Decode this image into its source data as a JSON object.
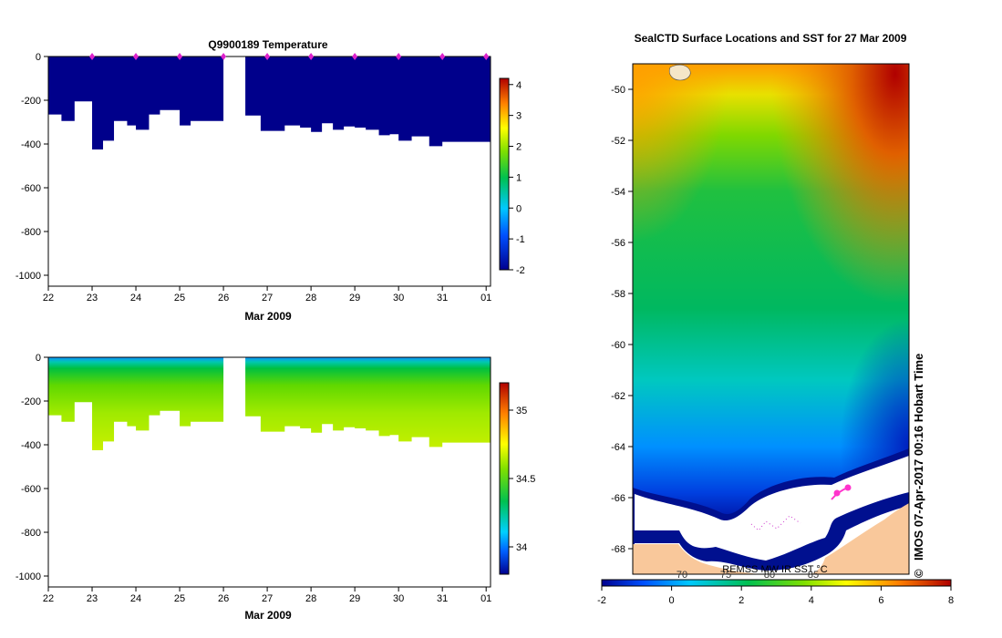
{
  "chart_data": [
    {
      "type": "heatmap",
      "title": "Q9900189  Temperature",
      "xlabel": "Mar 2009",
      "ylabel": "",
      "x_ticks": [
        "22",
        "23",
        "24",
        "25",
        "26",
        "27",
        "28",
        "29",
        "30",
        "31",
        "01"
      ],
      "y_ticks": [
        "0",
        "-200",
        "-400",
        "-600",
        "-800",
        "-1000"
      ],
      "ylim": [
        -1050,
        0
      ],
      "colorbar_ticks": [
        "-2",
        "-1",
        "0",
        "1",
        "2",
        "3",
        "4"
      ],
      "colorbar_range": [
        -2,
        4.2
      ],
      "gap_days": [
        26.0,
        26.5
      ],
      "profile_marks": [
        "23",
        "24",
        "25",
        "26",
        "27",
        "28",
        "29",
        "30",
        "31",
        "01"
      ],
      "profile_bottom_depths": [
        {
          "x": 22.0,
          "depth": -265
        },
        {
          "x": 22.3,
          "depth": -295
        },
        {
          "x": 22.6,
          "depth": -205
        },
        {
          "x": 23.0,
          "depth": -425
        },
        {
          "x": 23.25,
          "depth": -385
        },
        {
          "x": 23.5,
          "depth": -295
        },
        {
          "x": 23.8,
          "depth": -315
        },
        {
          "x": 24.0,
          "depth": -335
        },
        {
          "x": 24.3,
          "depth": -265
        },
        {
          "x": 24.55,
          "depth": -245
        },
        {
          "x": 25.0,
          "depth": -315
        },
        {
          "x": 25.25,
          "depth": -295
        },
        {
          "x": 26.5,
          "depth": -270
        },
        {
          "x": 26.85,
          "depth": -340
        },
        {
          "x": 27.4,
          "depth": -315
        },
        {
          "x": 27.75,
          "depth": -325
        },
        {
          "x": 28.0,
          "depth": -345
        },
        {
          "x": 28.25,
          "depth": -305
        },
        {
          "x": 28.5,
          "depth": -335
        },
        {
          "x": 28.75,
          "depth": -320
        },
        {
          "x": 29.0,
          "depth": -325
        },
        {
          "x": 29.25,
          "depth": -335
        },
        {
          "x": 29.55,
          "depth": -360
        },
        {
          "x": 29.8,
          "depth": -355
        },
        {
          "x": 30.0,
          "depth": -385
        },
        {
          "x": 30.3,
          "depth": -365
        },
        {
          "x": 30.7,
          "depth": -410
        },
        {
          "x": 31.0,
          "depth": -390
        },
        {
          "x": 32.1,
          "depth": -390
        }
      ]
    },
    {
      "type": "heatmap",
      "title": "",
      "xlabel": "Mar 2009",
      "ylabel": "",
      "x_ticks": [
        "22",
        "23",
        "24",
        "25",
        "26",
        "27",
        "28",
        "29",
        "30",
        "31",
        "01"
      ],
      "y_ticks": [
        "0",
        "-200",
        "-400",
        "-600",
        "-800",
        "-1000"
      ],
      "ylim": [
        -1050,
        0
      ],
      "colorbar_ticks": [
        "34",
        "34.5",
        "35"
      ],
      "colorbar_range": [
        33.8,
        35.2
      ],
      "gap_days": [
        26.0,
        26.5
      ]
    },
    {
      "type": "heatmap",
      "title": "SealCTD Surface Locations and SST for 27 Mar 2009",
      "xlabel": "",
      "ylabel": "",
      "y_ticks": [
        "-50",
        "-52",
        "-54",
        "-56",
        "-58",
        "-60",
        "-62",
        "-64",
        "-66",
        "-68"
      ],
      "ylim": [
        -69,
        -49
      ],
      "colorbar_ticks": [
        "-2",
        "0",
        "2",
        "4",
        "6",
        "8"
      ],
      "colorbar_range": [
        -2,
        8
      ],
      "colorbar_overlay_ticks": [
        "70",
        "75",
        "80",
        "85"
      ],
      "credit": "REMSS MW IR SST °C",
      "side_text": "IMOS 07-Apr-2017 00:16 Hobart Time",
      "copyright": "©"
    }
  ],
  "colors": {
    "dark_blue": "#00008b",
    "land": "#f9c89b",
    "ice": "#ffffff",
    "track": "#ff33cc"
  }
}
